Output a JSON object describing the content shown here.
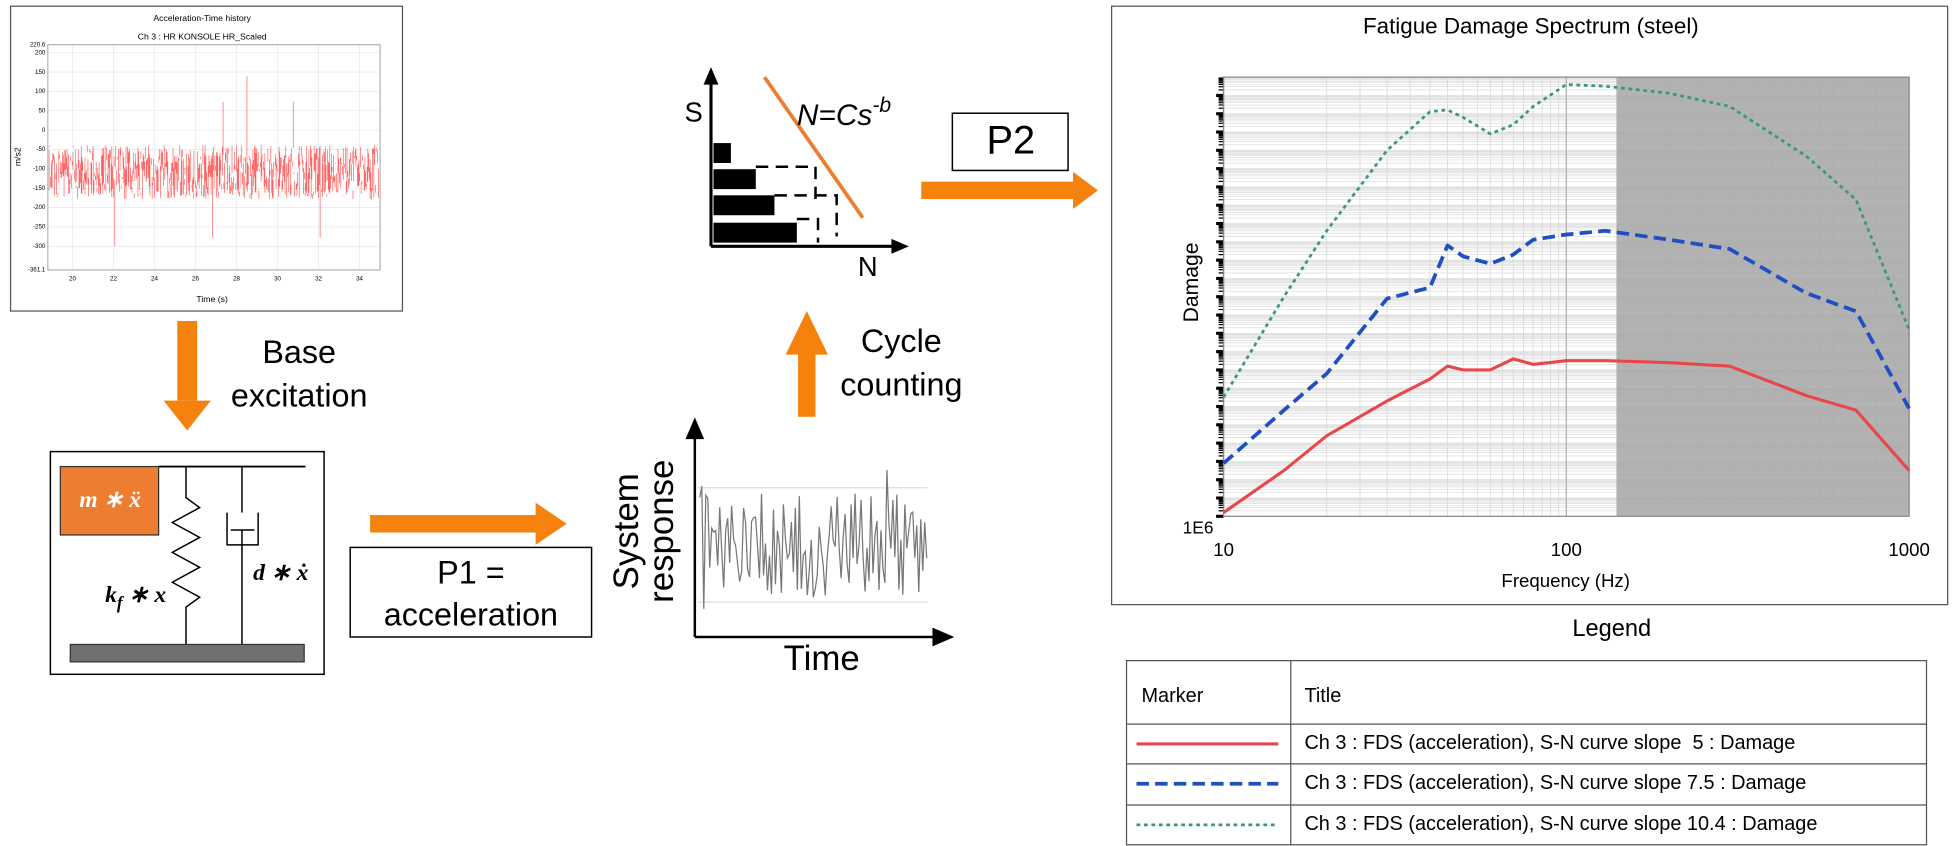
{
  "chart_data": [
    {
      "type": "line",
      "title": "Acceleration-Time history",
      "subtitle": "Ch 3 : HR KONSOLE HR_Scaled",
      "y_label": "m/s2",
      "x_label": "Time (s)",
      "color": "#ff4d4d",
      "grid": true,
      "xlim": [
        18.8,
        35.0
      ],
      "ylim": [
        -361.1,
        220.6
      ],
      "xticks": [
        20,
        22,
        24,
        26,
        28,
        30,
        32,
        34
      ],
      "yticks": [
        220.6,
        200,
        150,
        100,
        50,
        0,
        -50,
        -100,
        -150,
        -200,
        -250,
        -300,
        -361.1
      ]
    },
    {
      "type": "line",
      "title": "Fatigue Damage Spectrum (steel)",
      "y_label": "Damage",
      "x_label": "Frequency (Hz)",
      "log_x": true,
      "log_y": true,
      "grid": true,
      "xlim": [
        10,
        1000
      ],
      "ylim": [
        1000000.0,
        1e+30
      ],
      "xticks": [
        10,
        100,
        1000
      ],
      "yticks": [
        {
          "value": 1000000.0,
          "label": "1E6"
        }
      ],
      "shaded_xrange": [
        140,
        1000
      ],
      "shade_color": "#a6a6a6",
      "x": [
        10,
        15,
        20,
        30,
        40,
        45,
        50,
        60,
        70,
        80,
        100,
        130,
        200,
        300,
        500,
        700,
        1000
      ],
      "series": [
        {
          "name": "Ch 3 : FDS (acceleration), S-N curve slope  5 : Damage",
          "color": "#e8474a",
          "dash": "solid",
          "values": [
            1600000.0,
            320000000.0,
            25000000000.0,
            2000000000000.0,
            32000000000000.0,
            160000000000000.0,
            100000000000000.0,
            100000000000000.0,
            400000000000000.0,
            200000000000000.0,
            320000000000000.0,
            320000000000000.0,
            250000000000000.0,
            160000000000000.0,
            4000000000000.0,
            630000000000.0,
            320000000.0
          ]
        },
        {
          "name": "Ch 3 : FDS (acceleration), S-N curve slope 7.5 : Damage",
          "color": "#1f4fc2",
          "dash": "dashed",
          "values": [
            790000000.0,
            630000000000.0,
            63000000000000.0,
            7.9e+17,
            3.2e+18,
            6.3e+20,
            1.6e+20,
            6.3e+19,
            2e+20,
            1.3e+21,
            2.5e+21,
            4e+21,
            1.3e+21,
            4e+20,
            1.6e+18,
            1.6e+17,
            790000000000.0
          ]
        },
        {
          "name": "Ch 3 : FDS (acceleration), S-N curve slope 10.4 : Damage",
          "color": "#3a9a6a",
          "dash": "dotted",
          "values": [
            3200000000000.0,
            1e+18,
            4e+21,
            1e+26,
            1.3e+28,
            1.6e+28,
            6.3e+27,
            7.9e+26,
            2.5e+27,
            2.5e+28,
            4e+29,
            3.2e+29,
            1.3e+29,
            2.5e+28,
            5e+25,
            2e+23,
            1.6e+16
          ]
        }
      ]
    }
  ],
  "legend": {
    "title": "Legend",
    "headers": [
      "Marker",
      "Title"
    ]
  },
  "diagram": {
    "base_excitation": [
      "Base",
      "excitation"
    ],
    "mass_term": "m ∗ ẍ",
    "stiffness_term": [
      "k",
      "f",
      " ∗ x"
    ],
    "damping_term": "d ∗ ẋ",
    "p1": [
      "P1 =",
      "acceleration"
    ],
    "response_axis": [
      "System",
      "response"
    ],
    "time_axis": "Time",
    "cycle_counting": [
      "Cycle",
      "counting"
    ],
    "sn_axis_y": "S",
    "sn_axis_x": "N",
    "sn_formula": [
      "N=Cs",
      "-b"
    ],
    "p2": "P2"
  }
}
